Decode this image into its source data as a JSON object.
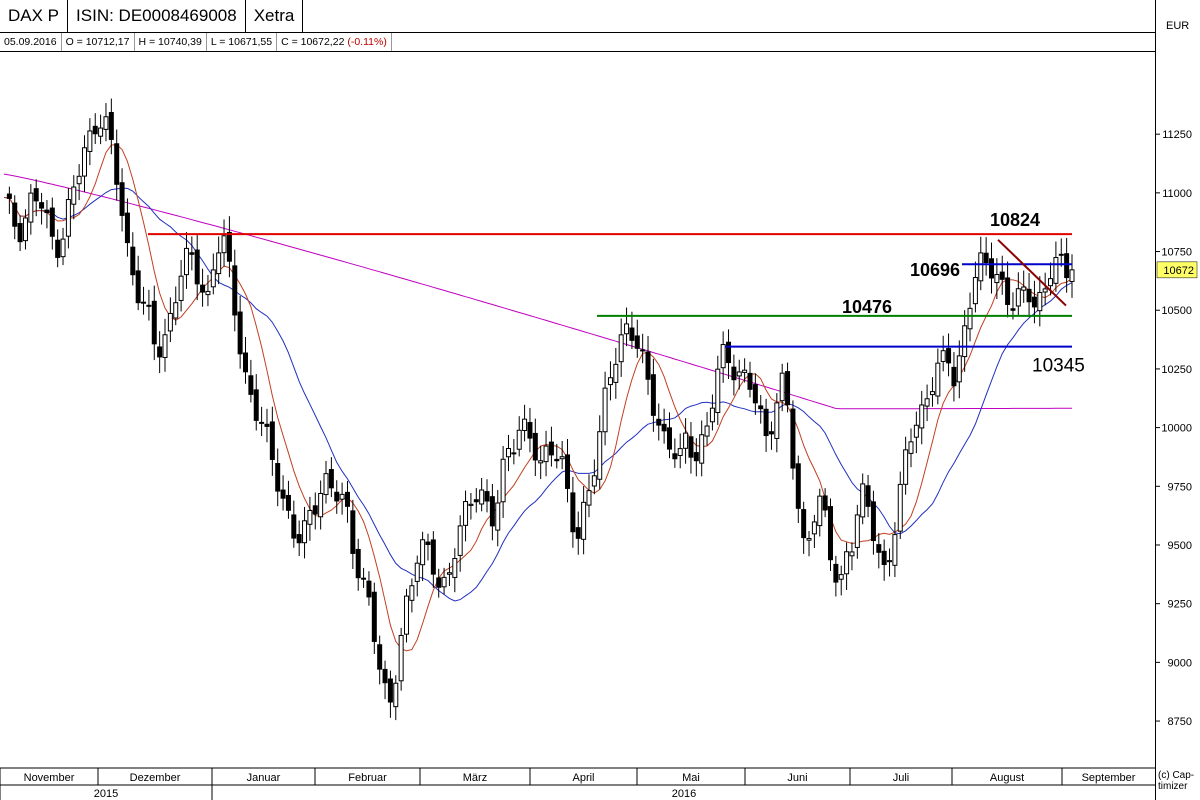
{
  "header": {
    "symbol": "DAX P",
    "isin": "ISIN: DE0008469008",
    "exchange": "Xetra",
    "currency": "EUR"
  },
  "ohlc": {
    "date": "05.09.2016",
    "open": "O = 10712,17",
    "high": "H = 10740,39",
    "low": "L = 10671,55",
    "close": "C = 10672,22",
    "change": "(-0.11%)"
  },
  "copyright": "(c) Cap-timizer",
  "colors": {
    "resistance": "#e00000",
    "support_green": "#008000",
    "support_blue": "#0000cc",
    "sma_short": "#c04020",
    "sma_mid": "#2030c0",
    "sma_long": "#c000c0",
    "trendline": "#8b0000",
    "last_price_bg": "#ffff66"
  },
  "chart_data": {
    "type": "candlestick",
    "y_axis": {
      "min": 8550,
      "max": 11600,
      "ticks": [
        8750,
        9000,
        9250,
        9500,
        9750,
        10000,
        10250,
        10500,
        10750,
        11000,
        11250
      ],
      "labels": [
        "8750",
        "9000",
        "9250",
        "9500",
        "9750",
        "10000",
        "10250",
        "10500",
        "10750",
        "11000",
        "11250"
      ],
      "last_price": "10672",
      "last_value": 10672
    },
    "x_axis": {
      "months": [
        "November",
        "Dezember",
        "Januar",
        "Februar",
        "März",
        "April",
        "Mai",
        "Juni",
        "Juli",
        "August",
        "September"
      ],
      "years": [
        "2015",
        "2016"
      ]
    },
    "levels": [
      {
        "label": "10824",
        "value": 10824,
        "color": "#e00000"
      },
      {
        "label": "10696",
        "value": 10696,
        "color": "#0000cc"
      },
      {
        "label": "10476",
        "value": 10476,
        "color": "#008000"
      },
      {
        "label": "10345",
        "value": 10345,
        "color": "#0000cc"
      }
    ],
    "close_path": [
      10950,
      10900,
      10850,
      10900,
      11000,
      10950,
      10850,
      10780,
      10820,
      10950,
      11050,
      11150,
      11250,
      11350,
      11300,
      11150,
      10950,
      10750,
      10650,
      10550,
      10450,
      10300,
      10350,
      10500,
      10650,
      10700,
      10700,
      10600,
      10550,
      10750,
      10820,
      10650,
      10450,
      10250,
      10150,
      10050,
      9950,
      9850,
      9750,
      9650,
      9550,
      9500,
      9600,
      9700,
      9800,
      9750,
      9700,
      9650,
      9500,
      9400,
      9300,
      9100,
      8900,
      8800,
      9000,
      9200,
      9300,
      9450,
      9500,
      9450,
      9350,
      9300,
      9450,
      9600,
      9700,
      9750,
      9700,
      9550,
      9700,
      9900,
      9950,
      10000,
      9950,
      9900,
      9850,
      9950,
      9900,
      9800,
      9600,
      9550,
      9700,
      9800,
      9950,
      10150,
      10300,
      10400,
      10450,
      10350,
      10250,
      10150,
      10050,
      9950,
      9900,
      9850,
      9950,
      9900,
      9950,
      10000,
      10200,
      10300,
      10300,
      10250,
      10200,
      10150,
      10050,
      9950,
      10100,
      10200,
      10050,
      9700,
      9500,
      9600,
      9700,
      9600,
      9400,
      9300,
      9500,
      9550,
      9700,
      9650,
      9500,
      9400,
      9500,
      9600,
      9850,
      10000,
      10050,
      10150,
      10200,
      10250,
      10300,
      10200,
      10400,
      10550,
      10650,
      10700,
      10700,
      10650,
      10550,
      10500,
      10550,
      10600,
      10550,
      10550,
      10650,
      10700,
      10680,
      10672
    ]
  }
}
